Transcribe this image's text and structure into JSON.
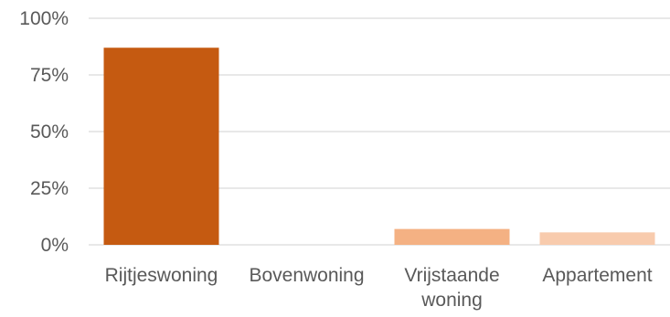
{
  "chart_data": {
    "type": "bar",
    "title": "",
    "xlabel": "",
    "ylabel": "",
    "categories": [
      [
        "Rijtjeswoning"
      ],
      [
        "Bovenwoning"
      ],
      [
        "Vrijstaande",
        "woning"
      ],
      [
        "Appartement"
      ]
    ],
    "values": [
      0.87,
      0.0,
      0.07,
      0.055
    ],
    "bar_colors": [
      "#c55a11",
      "#e59866",
      "#f4b183",
      "#f8cbad"
    ],
    "ylim": [
      0,
      1
    ],
    "yticks": [
      0,
      0.25,
      0.5,
      0.75,
      1.0
    ],
    "ytick_labels": [
      "0%",
      "25%",
      "50%",
      "75%",
      "100%"
    ],
    "gridlines": true,
    "legend": "none"
  }
}
